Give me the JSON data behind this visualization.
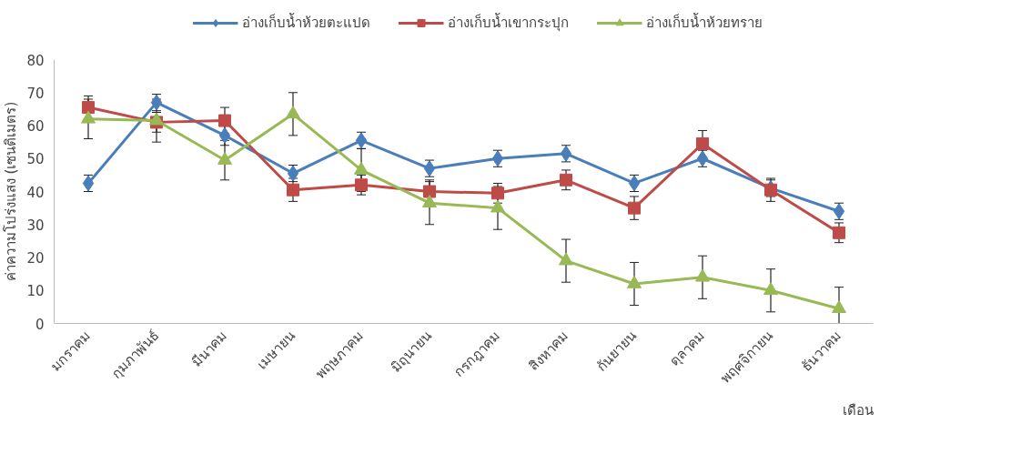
{
  "chart_data": {
    "type": "line",
    "ylabel": "ค่าความโปร่งแสง (เซนติเมตร)",
    "xlabel": "เดือน",
    "categories": [
      "มกราคม",
      "กุมภาพันธ์",
      "มีนาคม",
      "เมษายน",
      "พฤษภาคม",
      "มิถุนายน",
      "กรกฎาคม",
      "สิงหาคม",
      "กันยายน",
      "ตุลาคม",
      "พฤศจิกายน",
      "ธันวาคม"
    ],
    "series": [
      {
        "name": "อ่างเก็บน้ำห้วยตะแปด",
        "color": "#4a7ebb",
        "marker": "diamond",
        "values": [
          42.5,
          67,
          57,
          45.5,
          55.5,
          47,
          50,
          51.5,
          42.5,
          50,
          41,
          34
        ],
        "errors": [
          2.5,
          2.5,
          3,
          2.5,
          2.5,
          2.5,
          2.5,
          2.5,
          2.5,
          2.5,
          2.5,
          2.5
        ]
      },
      {
        "name": "อ่างเก็บน้ำเขากระปุก",
        "color": "#be4b48",
        "marker": "square",
        "values": [
          65.5,
          61,
          61.5,
          40.5,
          42,
          40,
          39.5,
          43.5,
          35,
          54.5,
          40.5,
          27.5
        ],
        "errors": [
          3.5,
          3,
          4,
          3.5,
          3,
          3.5,
          3,
          3,
          3.5,
          4,
          3.5,
          3
        ]
      },
      {
        "name": "อ่างเก็บน้ำห้วยทราย",
        "color": "#98b954",
        "marker": "triangle",
        "values": [
          62,
          61.5,
          49.5,
          63.5,
          46.5,
          36.5,
          35,
          19,
          12,
          14,
          10,
          4.5
        ],
        "errors": [
          6,
          6.5,
          6,
          6.5,
          6.5,
          6.5,
          6.5,
          6.5,
          6.5,
          6.5,
          6.5,
          6.5
        ]
      }
    ],
    "ylim": [
      0,
      80
    ],
    "yticks": [
      0,
      10,
      20,
      30,
      40,
      50,
      60,
      70,
      80
    ],
    "grid": false,
    "legend": "top"
  }
}
